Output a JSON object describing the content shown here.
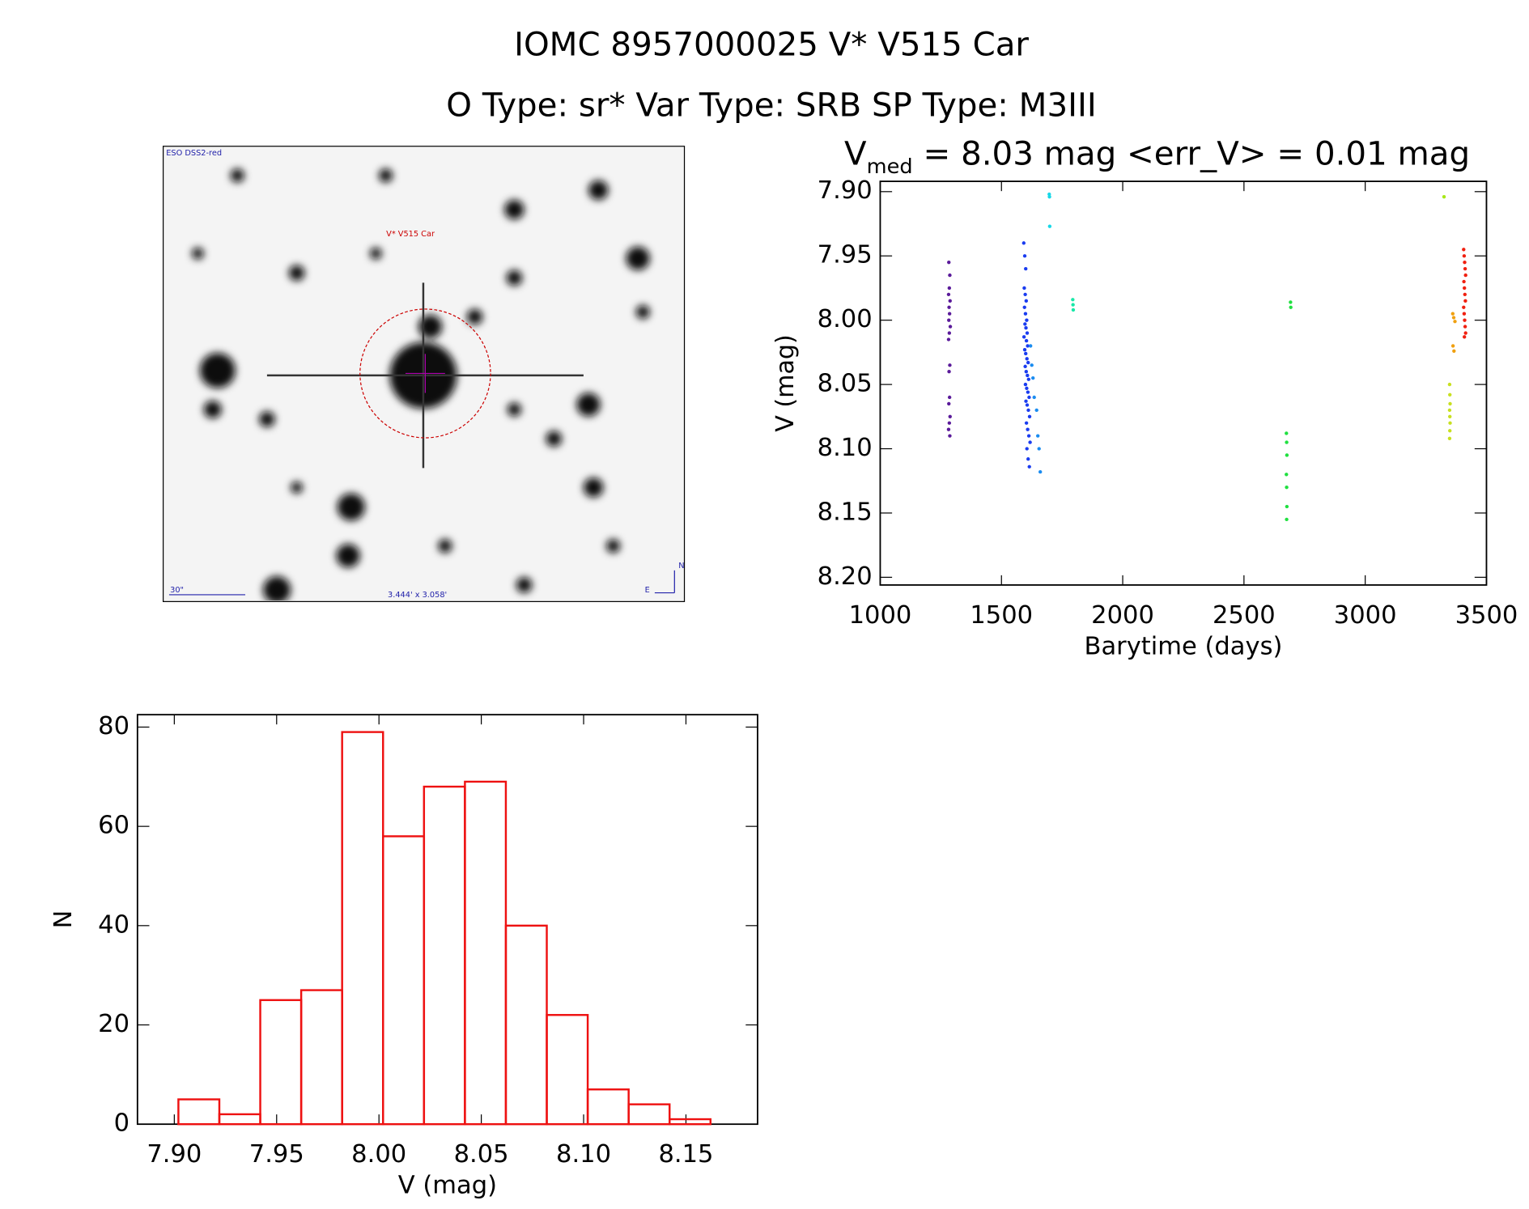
{
  "header": {
    "title": "IOMC 8957000025   V* V515 Car",
    "subtitle": "O Type: sr*  Var Type: SRB  SP Type: M3III"
  },
  "image": {
    "survey": "ESO DSS2-red",
    "target": "V* V515 Car",
    "scale": "30\"",
    "size": "3.444' x 3.058'",
    "north": "N",
    "east": "E"
  },
  "chart_data": [
    {
      "type": "scatter",
      "title": [
        "V",
        "med",
        " = 8.03 mag <err_V> = 0.01 mag"
      ],
      "xlabel": "Barytime (days)",
      "ylabel": "V (mag)",
      "xlim": [
        1000,
        3500
      ],
      "xticks": [
        1000,
        1500,
        2000,
        2500,
        3000,
        3500
      ],
      "ylim": [
        7.892,
        8.206
      ],
      "y_inverted": true,
      "yticks": [
        {
          "value": 7.9,
          "label": "7.90"
        },
        7.95,
        {
          "value": 8.0,
          "label": "8.00"
        },
        8.05,
        {
          "value": 8.1,
          "label": "8.10"
        },
        8.15,
        {
          "value": 8.2,
          "label": "8.20"
        }
      ],
      "series": [
        {
          "color": "#5a1a9a",
          "x": [
            1283,
            1287,
            1285,
            1282,
            1288,
            1284,
            1286,
            1283,
            1289,
            1285,
            1282,
            1287,
            1284,
            1286,
            1283,
            1288,
            1285,
            1282,
            1287
          ],
          "values": [
            7.955,
            7.965,
            7.975,
            7.98,
            7.985,
            7.99,
            7.995,
            8.0,
            8.005,
            8.01,
            8.015,
            8.035,
            8.04,
            8.06,
            8.065,
            8.075,
            8.08,
            8.085,
            8.09
          ]
        },
        {
          "color": "#1a3cf0",
          "x": [
            1592,
            1596,
            1600,
            1594,
            1598,
            1602,
            1595,
            1599,
            1604,
            1597,
            1601,
            1606,
            1593,
            1603,
            1608,
            1596,
            1600,
            1605,
            1610,
            1598,
            1602,
            1607,
            1612,
            1599,
            1604,
            1609,
            1614,
            1601,
            1606,
            1611,
            1616,
            1603,
            1608,
            1613,
            1618,
            1605,
            1610,
            1615
          ],
          "values": [
            7.94,
            7.95,
            7.96,
            7.975,
            7.98,
            7.985,
            7.99,
            7.995,
            8.0,
            8.003,
            8.006,
            8.01,
            8.013,
            8.016,
            8.02,
            8.023,
            8.026,
            8.03,
            8.033,
            8.036,
            8.04,
            8.043,
            8.046,
            8.05,
            8.053,
            8.056,
            8.06,
            8.063,
            8.066,
            8.07,
            8.075,
            8.08,
            8.085,
            8.09,
            8.095,
            8.1,
            8.108,
            8.114
          ]
        },
        {
          "color": "#1a8cf0",
          "x": [
            1620,
            1625,
            1630,
            1635,
            1645,
            1650,
            1655,
            1660
          ],
          "values": [
            8.02,
            8.035,
            8.045,
            8.06,
            8.07,
            8.09,
            8.1,
            8.118
          ]
        },
        {
          "color": "#18d8e8",
          "x": [
            1697,
            1698,
            1699
          ],
          "values": [
            7.902,
            7.904,
            7.927
          ]
        },
        {
          "color": "#18e8a8",
          "x": [
            1794,
            1795,
            1796
          ],
          "values": [
            7.984,
            7.988,
            7.992
          ]
        },
        {
          "color": "#20e040",
          "x": [
            2675,
            2676,
            2677,
            2675,
            2676,
            2677,
            2676,
            2692,
            2693
          ],
          "values": [
            8.088,
            8.095,
            8.105,
            8.12,
            8.13,
            8.145,
            8.155,
            7.986,
            7.99
          ]
        },
        {
          "color": "#a8e818",
          "x": [
            3325
          ],
          "values": [
            7.904
          ]
        },
        {
          "color": "#c8e020",
          "x": [
            3348,
            3349,
            3350,
            3348,
            3349,
            3350,
            3349,
            3348
          ],
          "values": [
            8.05,
            8.058,
            8.065,
            8.07,
            8.075,
            8.08,
            8.086,
            8.092
          ]
        },
        {
          "color": "#f0a010",
          "x": [
            3361,
            3365,
            3370,
            3362,
            3366
          ],
          "values": [
            7.995,
            7.998,
            8.001,
            8.02,
            8.024
          ]
        },
        {
          "color": "#f02010",
          "x": [
            3406,
            3408,
            3410,
            3412,
            3414,
            3407,
            3409,
            3411,
            3413,
            3406,
            3408,
            3410,
            3412,
            3414,
            3409
          ],
          "values": [
            7.945,
            7.95,
            7.955,
            7.96,
            7.965,
            7.97,
            7.975,
            7.98,
            7.985,
            7.99,
            7.995,
            8.0,
            8.005,
            8.01,
            8.013
          ]
        }
      ]
    },
    {
      "type": "histogram",
      "xlabel": "V (mag)",
      "ylabel": "N",
      "color": "#ee1111",
      "bins": [
        7.902,
        7.922,
        7.942,
        7.962,
        7.982,
        8.002,
        8.022,
        8.042,
        8.062,
        8.082,
        8.102,
        8.122,
        8.142,
        8.162
      ],
      "counts": [
        5,
        2,
        25,
        27,
        79,
        58,
        68,
        69,
        40,
        22,
        7,
        4,
        1
      ],
      "xlim": [
        7.882,
        8.185
      ],
      "xticks": [
        {
          "value": 7.9,
          "label": "7.90"
        },
        7.95,
        {
          "value": 8.0,
          "label": "8.00"
        },
        8.05,
        {
          "value": 8.1,
          "label": "8.10"
        },
        8.15
      ],
      "ylim": [
        0,
        82.5
      ],
      "yticks": [
        0,
        20,
        40,
        60,
        80
      ]
    }
  ]
}
